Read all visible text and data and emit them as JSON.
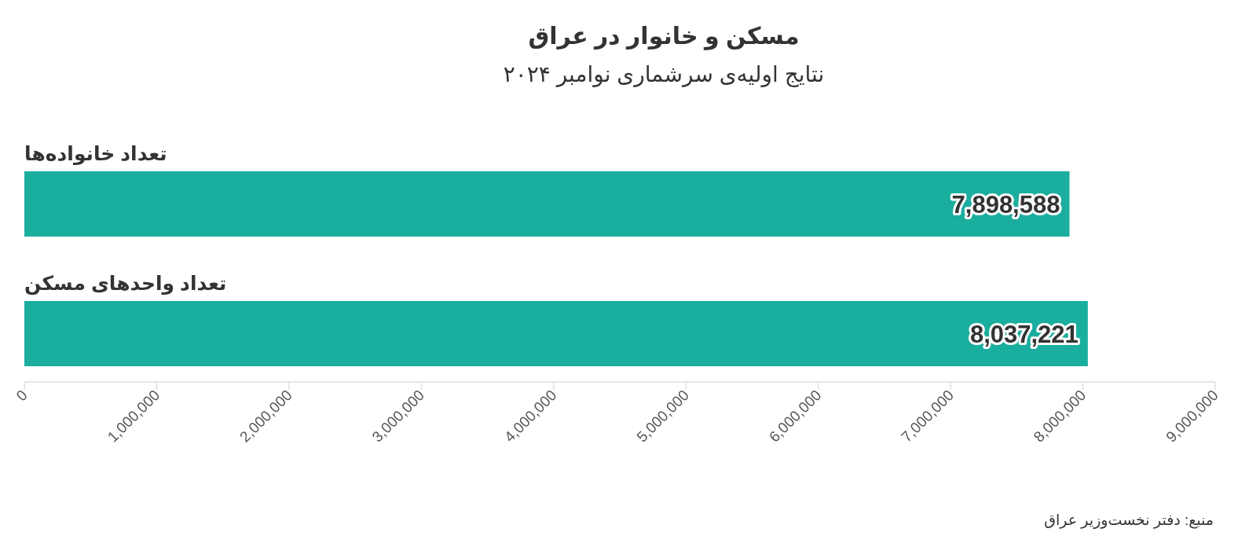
{
  "chart_data": {
    "type": "bar",
    "orientation": "horizontal",
    "title": "مسکن و خانوار در عراق",
    "subtitle": "نتایج اولیه‌ی سرشماری نوامبر ۲۰۲۴",
    "categories": [
      "تعداد خانواده‌ها",
      "تعداد واحدهای مسکن"
    ],
    "values": [
      7898588,
      8037221
    ],
    "color": "#1aae9e",
    "value_labels": [
      "7,898,588",
      "8,037,221"
    ],
    "xlim": [
      0,
      9000000
    ],
    "xticks": [
      0,
      {
        "value": 1000000,
        "label": "1,000,000"
      },
      {
        "value": 2000000,
        "label": "2,000,000"
      },
      {
        "value": 3000000,
        "label": "3,000,000"
      },
      {
        "value": 4000000,
        "label": "4,000,000"
      },
      {
        "value": 5000000,
        "label": "5,000,000"
      },
      {
        "value": 6000000,
        "label": "6,000,000"
      },
      {
        "value": 7000000,
        "label": "7,000,000"
      },
      {
        "value": 8000000,
        "label": "8,000,000"
      },
      {
        "value": 9000000,
        "label": "9,000,000"
      }
    ],
    "annotations": [
      "منبع: دفتر نخست‌وزیر عراق"
    ]
  }
}
